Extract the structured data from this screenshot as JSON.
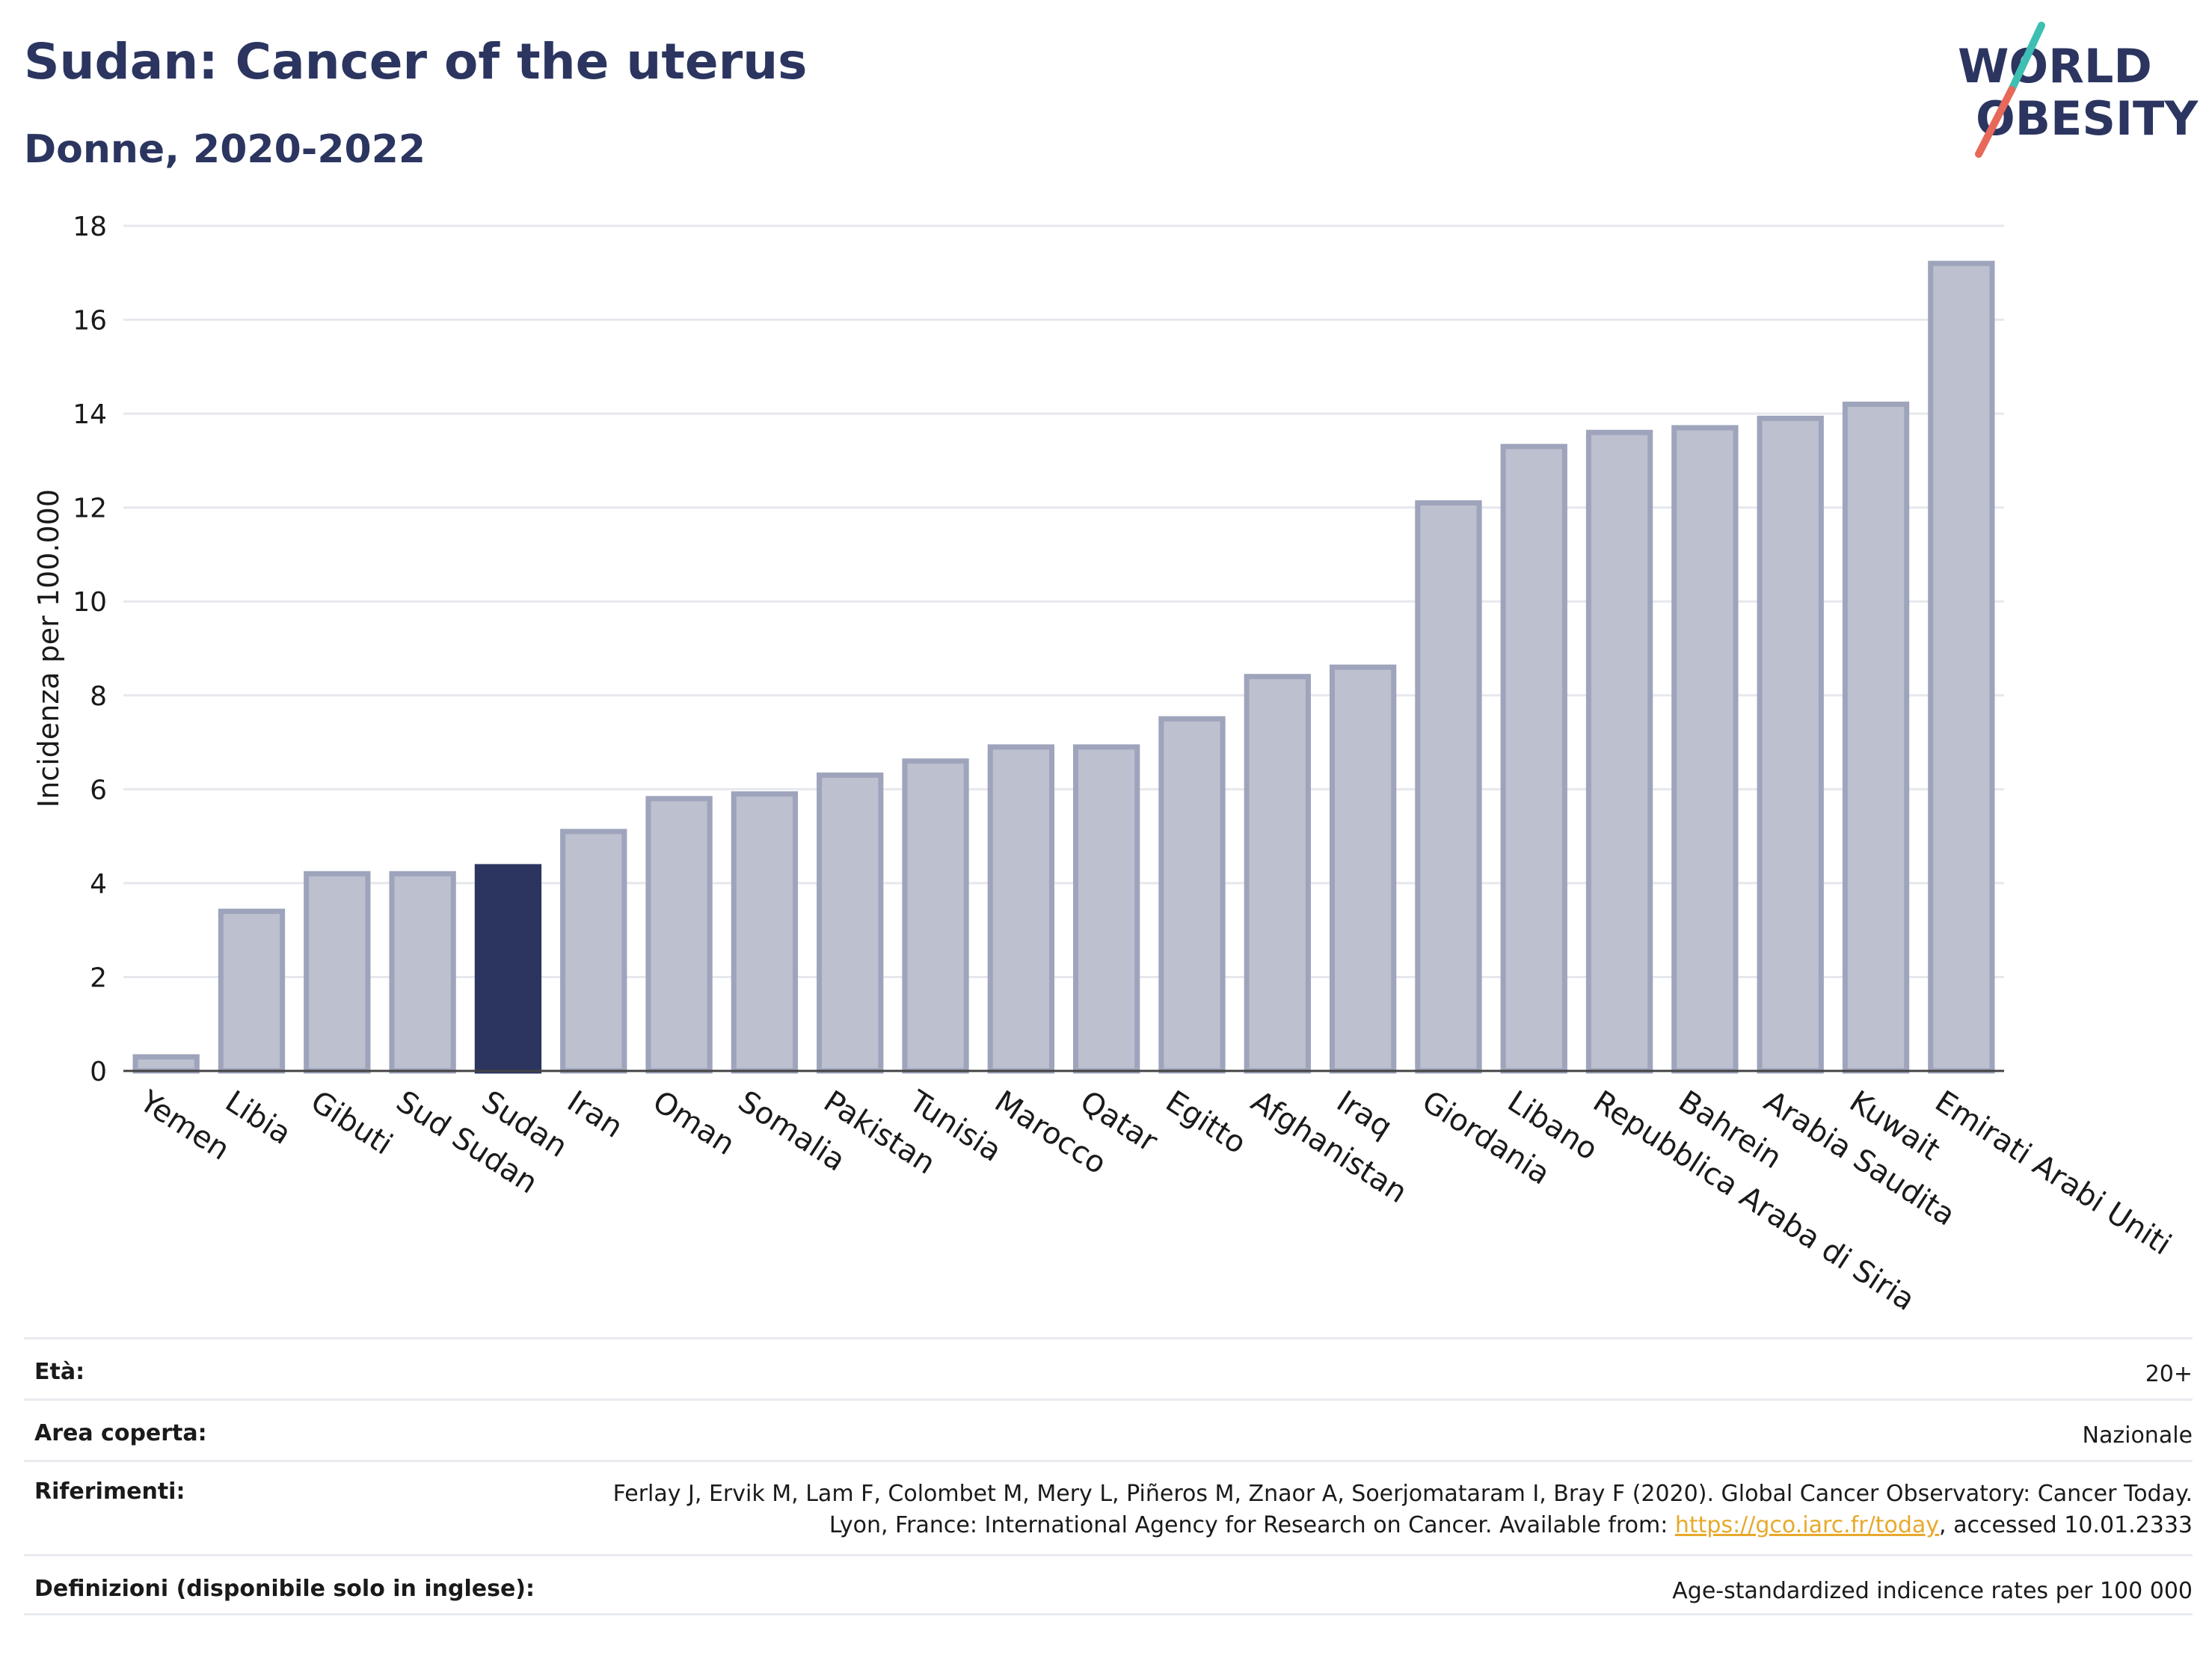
{
  "header": {
    "title": "Sudan: Cancer of the uterus",
    "subtitle": "Donne, 2020-2022"
  },
  "logo": {
    "line1": "WORLD",
    "line2": "OBESITY",
    "accent_teal": "#3dbfb3",
    "accent_red": "#e8685a",
    "text_color": "#2b3560"
  },
  "chart_data": {
    "type": "bar",
    "ylabel": "Incidenza per 100.000",
    "xlabel": "",
    "ylim": [
      0,
      18
    ],
    "yticks": [
      0,
      2,
      4,
      6,
      8,
      10,
      12,
      14,
      16,
      18
    ],
    "grid": true,
    "highlight": "Sudan",
    "highlight_color": "#2b3560",
    "bar_color": "#bcc0cf",
    "bar_edge_color": "#9ea4bb",
    "categories": [
      "Yemen",
      "Libia",
      "Gibuti",
      "Sud Sudan",
      "Sudan",
      "Iran",
      "Oman",
      "Somalia",
      "Pakistan",
      "Tunisia",
      "Marocco",
      "Qatar",
      "Egitto",
      "Afghanistan",
      "Iraq",
      "Giordania",
      "Libano",
      "Repubblica Araba di Siria",
      "Bahrein",
      "Arabia Saudita",
      "Kuwait",
      "Emirati Arabi Uniti"
    ],
    "values": [
      0.3,
      3.4,
      4.2,
      4.2,
      4.35,
      5.1,
      5.8,
      5.9,
      6.3,
      6.6,
      6.9,
      6.9,
      7.5,
      8.4,
      8.6,
      12.1,
      13.3,
      13.6,
      13.7,
      13.9,
      14.2,
      17.2
    ]
  },
  "meta": {
    "age_label": "Età:",
    "age_value": "20+",
    "area_label": "Area coperta:",
    "area_value": "Nazionale",
    "refs_label": "Riferimenti:",
    "refs_text_1": "Ferlay J, Ervik M, Lam F, Colombet M, Mery L, Piñeros M, Znaor A, Soerjomataram I, Bray F (2020). Global Cancer Observatory: Cancer Today. Lyon, France: International Agency for Research on Cancer. Available from: ",
    "refs_link": "https://gco.iarc.fr/today",
    "refs_text_2": ", accessed 10.01.2333",
    "defs_label": "Definizioni (disponibile solo in inglese):",
    "defs_value": "Age-standardized indicence rates per 100 000"
  }
}
